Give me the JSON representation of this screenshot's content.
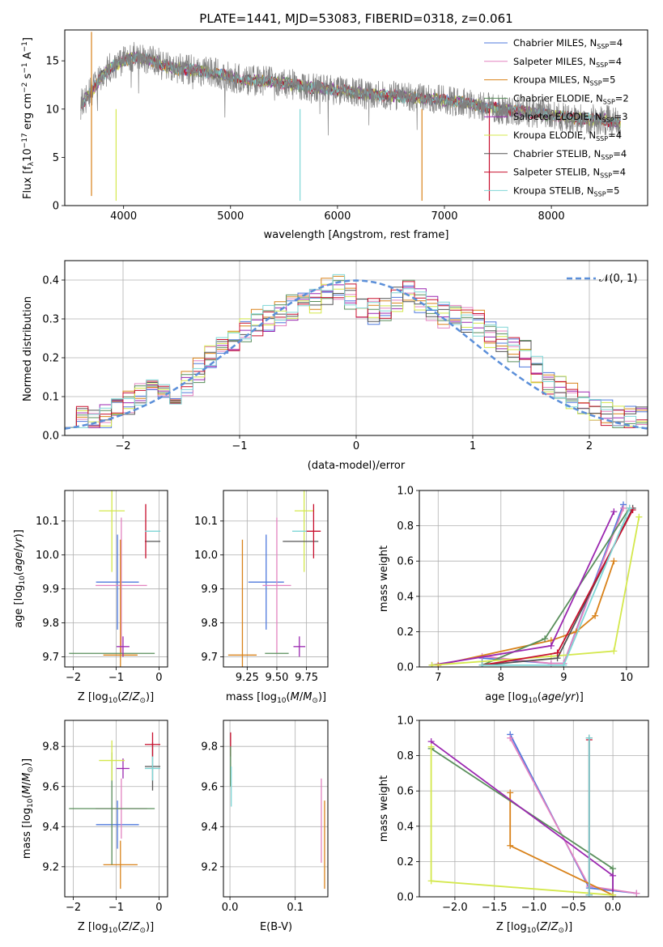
{
  "chart_data": [
    {
      "type": "line",
      "title": "PLATE=1441, MJD=53083, FIBERID=0318, z=0.061",
      "xlabel": "wavelength [Angstrom, rest frame]",
      "ylabel": "Flux [f$_{\\lambda}$10$^{-17}$ erg cm$^{-2}$ s$^{-1}$ A$^{-1}$]",
      "ylabel_parts": [
        "Flux [f",
        "λ",
        "10",
        "−17",
        " erg cm",
        "−2",
        " s",
        "−1",
        " A",
        "−1",
        "]"
      ],
      "xlim": [
        3450,
        8900
      ],
      "ylim": [
        0,
        18.2
      ],
      "xticks": [
        4000,
        5000,
        6000,
        7000,
        8000
      ],
      "yticks": [
        0,
        5,
        10,
        15
      ],
      "legend_position": "top-right",
      "observed_spectrum": {
        "color": "#808080",
        "x": [
          3600,
          3700,
          3800,
          3900,
          4000,
          4100,
          4200,
          4300,
          4400,
          4500,
          4700,
          4900,
          5100,
          5300,
          5500,
          5700,
          5900,
          6100,
          6300,
          6500,
          6700,
          6900,
          7100,
          7300,
          7500,
          7700,
          7900,
          8100,
          8300,
          8500,
          8650
        ],
        "y": [
          10.5,
          11.8,
          13.5,
          14.5,
          15.0,
          15.4,
          15.2,
          14.9,
          14.4,
          14.2,
          14.0,
          13.6,
          13.1,
          12.9,
          12.7,
          12.3,
          12.1,
          11.8,
          11.5,
          11.4,
          11.2,
          11.0,
          10.8,
          10.4,
          10.0,
          9.8,
          9.5,
          9.2,
          9.0,
          8.9,
          8.5
        ]
      },
      "series": [
        {
          "name": "Chabrier MILES, N$_{SSP}$=4",
          "label_main": "Chabrier MILES, N",
          "label_sub": "SSP",
          "label_tail": "=4",
          "color": "#4f79dd"
        },
        {
          "name": "Salpeter MILES, N$_{SSP}$=4",
          "label_main": "Salpeter MILES, N",
          "label_sub": "SSP",
          "label_tail": "=4",
          "color": "#e383c0"
        },
        {
          "name": "Kroupa MILES, N$_{SSP}$=5",
          "label_main": "Kroupa MILES, N",
          "label_sub": "SSP",
          "label_tail": "=5",
          "color": "#d9821a"
        },
        {
          "name": "Chabrier ELODIE, N$_{SSP}$=2",
          "label_main": "Chabrier ELODIE, N",
          "label_sub": "SSP",
          "label_tail": "=2",
          "color": "#5a8f5c"
        },
        {
          "name": "Salpeter ELODIE, N$_{SSP}$=3",
          "label_main": "Salpeter ELODIE, N",
          "label_sub": "SSP",
          "label_tail": "=3",
          "color": "#9b27b0"
        },
        {
          "name": "Kroupa ELODIE, N$_{SSP}$=4",
          "label_main": "Kroupa ELODIE, N",
          "label_sub": "SSP",
          "label_tail": "=4",
          "color": "#d4e84c"
        },
        {
          "name": "Chabrier STELIB, N$_{SSP}$=4",
          "label_main": "Chabrier STELIB, N",
          "label_sub": "SSP",
          "label_tail": "=4",
          "color": "#555555"
        },
        {
          "name": "Salpeter STELIB, N$_{SSP}$=4",
          "label_main": "Salpeter STELIB, N",
          "label_sub": "SSP",
          "label_tail": "=4",
          "color": "#c8102e"
        },
        {
          "name": "Kroupa STELIB, N$_{SSP}$=5",
          "label_main": "Kroupa STELIB, N",
          "label_sub": "SSP",
          "label_tail": "=5",
          "color": "#7fd6d6"
        }
      ]
    },
    {
      "type": "line",
      "xlabel": "(data-model)/error",
      "ylabel": "Normed distribution",
      "xlim": [
        -2.5,
        2.5
      ],
      "ylim": [
        0,
        0.45
      ],
      "xticks": [
        -2,
        -1,
        0,
        1,
        2
      ],
      "yticks": [
        0.0,
        0.1,
        0.2,
        0.3,
        0.4
      ],
      "grid": true,
      "legend_position": "top-right",
      "legend": "$\\mathcal{N}(0,1)$",
      "legend_text": "𝒩(0, 1)",
      "bin_width": 0.1,
      "histogram_profile": [
        0.04,
        0.04,
        0.04,
        0.05,
        0.06,
        0.08,
        0.1,
        0.12,
        0.1,
        0.11,
        0.13,
        0.17,
        0.2,
        0.22,
        0.24,
        0.27,
        0.29,
        0.3,
        0.31,
        0.33,
        0.36,
        0.35,
        0.37,
        0.38,
        0.36,
        0.33,
        0.32,
        0.33,
        0.35,
        0.37,
        0.35,
        0.33,
        0.31,
        0.3,
        0.3,
        0.29,
        0.26,
        0.25,
        0.22,
        0.21,
        0.17,
        0.14,
        0.12,
        0.1,
        0.08,
        0.07,
        0.06,
        0.05,
        0.04,
        0.04
      ],
      "normal_curve_color": "#5b8fd9"
    },
    {
      "type": "scatter",
      "xlabel": "Z [log$_{10}$(Z/Z$_\\odot$)]",
      "ylabel": "age  [log$_{10}$(age/yr)]",
      "xlim": [
        -2.2,
        0.2
      ],
      "ylim": [
        9.67,
        10.19
      ],
      "xticks": [
        -2,
        -1,
        0
      ],
      "yticks": [
        9.7,
        9.8,
        9.9,
        10.0,
        10.1
      ],
      "ytick_labels": [
        "9.7",
        "9.8",
        "9.9",
        "10.0",
        "10.1"
      ],
      "grid": true,
      "points": [
        {
          "series": "Chabrier MILES",
          "x": -0.97,
          "y": 9.92,
          "xerr": 0.5,
          "yerr": 0.14
        },
        {
          "series": "Salpeter MILES",
          "x": -0.88,
          "y": 9.91,
          "xerr": 0.6,
          "yerr": 0.2
        },
        {
          "series": "Kroupa MILES",
          "x": -0.9,
          "y": 9.705,
          "xerr": 0.4,
          "yerr": 0.34
        },
        {
          "series": "Chabrier ELODIE",
          "x": -1.1,
          "y": 9.71,
          "xerr": 1.0,
          "yerr": 0.0
        },
        {
          "series": "Salpeter ELODIE",
          "x": -0.84,
          "y": 9.73,
          "xerr": 0.15,
          "yerr": 0.03
        },
        {
          "series": "Kroupa ELODIE",
          "x": -1.1,
          "y": 10.13,
          "xerr": 0.3,
          "yerr": 0.18
        },
        {
          "series": "Chabrier STELIB",
          "x": -0.15,
          "y": 10.04,
          "xerr": 0.18,
          "yerr": 0.0
        },
        {
          "series": "Salpeter STELIB",
          "x": -0.31,
          "y": 10.07,
          "xerr": 0.0,
          "yerr": 0.08
        },
        {
          "series": "Kroupa STELIB",
          "x": -0.15,
          "y": 10.07,
          "xerr": 0.18,
          "yerr": 0.0
        }
      ]
    },
    {
      "type": "scatter",
      "xlabel": "mass [log$_{10}$(M/M$_\\odot$)]",
      "ylabel": "",
      "xlim": [
        9.05,
        9.93
      ],
      "ylim": [
        9.67,
        10.19
      ],
      "xticks": [
        9.25,
        9.5,
        9.75
      ],
      "xtick_labels": [
        "9.25",
        "9.50",
        "9.75"
      ],
      "yticks": [
        9.7,
        9.8,
        9.9,
        10.0,
        10.1
      ],
      "ytick_labels": [
        "9.7",
        "9.8",
        "9.9",
        "10.0",
        "10.1"
      ],
      "grid": true,
      "points": [
        {
          "series": "Chabrier MILES",
          "x": 9.41,
          "y": 9.92,
          "xerr": 0.15,
          "yerr": 0.14
        },
        {
          "series": "Salpeter MILES",
          "x": 9.5,
          "y": 9.91,
          "xerr": 0.12,
          "yerr": 0.2
        },
        {
          "series": "Kroupa MILES",
          "x": 9.21,
          "y": 9.705,
          "xerr": 0.12,
          "yerr": 0.34
        },
        {
          "series": "Chabrier ELODIE",
          "x": 9.5,
          "y": 9.71,
          "xerr": 0.1,
          "yerr": 0.0
        },
        {
          "series": "Salpeter ELODIE",
          "x": 9.69,
          "y": 9.73,
          "xerr": 0.05,
          "yerr": 0.03
        },
        {
          "series": "Kroupa ELODIE",
          "x": 9.73,
          "y": 10.13,
          "xerr": 0.08,
          "yerr": 0.18
        },
        {
          "series": "Chabrier STELIB",
          "x": 9.7,
          "y": 10.04,
          "xerr": 0.15,
          "yerr": 0.0
        },
        {
          "series": "Salpeter STELIB",
          "x": 9.81,
          "y": 10.07,
          "xerr": 0.06,
          "yerr": 0.08
        },
        {
          "series": "Kroupa STELIB",
          "x": 9.69,
          "y": 10.07,
          "xerr": 0.06,
          "yerr": 0.0
        }
      ]
    },
    {
      "type": "line",
      "xlabel": "age  [log$_{10}$(age/yr)]",
      "ylabel": "mass weight",
      "xlim": [
        6.7,
        10.35
      ],
      "ylim": [
        0,
        1.0
      ],
      "xticks": [
        7,
        8,
        9,
        10
      ],
      "yticks": [
        0.0,
        0.2,
        0.4,
        0.6,
        0.8,
        1.0
      ],
      "grid": true,
      "series": [
        {
          "name": "Chabrier MILES",
          "x": [
            7.7,
            8.8,
            9.0,
            9.95
          ],
          "y": [
            0.05,
            0.02,
            0.02,
            0.92
          ]
        },
        {
          "name": "Salpeter MILES",
          "x": [
            7.7,
            8.8,
            9.0,
            9.95
          ],
          "y": [
            0.06,
            0.02,
            0.02,
            0.9
          ]
        },
        {
          "name": "Kroupa MILES",
          "x": [
            7.0,
            8.8,
            9.2,
            9.5,
            9.8
          ],
          "y": [
            0.01,
            0.15,
            0.2,
            0.29,
            0.6
          ]
        },
        {
          "name": "Chabrier ELODIE",
          "x": [
            7.7,
            8.7,
            10.05
          ],
          "y": [
            0.01,
            0.16,
            0.9
          ]
        },
        {
          "name": "Salpeter ELODIE",
          "x": [
            6.9,
            8.8,
            9.8
          ],
          "y": [
            0.01,
            0.12,
            0.88
          ]
        },
        {
          "name": "Kroupa ELODIE",
          "x": [
            6.9,
            8.8,
            9.8,
            10.2
          ],
          "y": [
            0.01,
            0.06,
            0.09,
            0.85
          ]
        },
        {
          "name": "Chabrier STELIB",
          "x": [
            7.7,
            8.9,
            10.1
          ],
          "y": [
            0.01,
            0.05,
            0.9
          ]
        },
        {
          "name": "Salpeter STELIB",
          "x": [
            7.7,
            8.9,
            10.1
          ],
          "y": [
            0.01,
            0.08,
            0.89
          ]
        },
        {
          "name": "Kroupa STELIB",
          "x": [
            7.7,
            9.0,
            10.05
          ],
          "y": [
            0.01,
            0.01,
            0.9
          ]
        }
      ]
    },
    {
      "type": "scatter",
      "xlabel": "Z [log$_{10}$(Z/Z$_\\odot$)]",
      "ylabel": "mass [log$_{10}$(M/M$_\\odot$)]",
      "xlim": [
        -2.2,
        0.2
      ],
      "ylim": [
        9.05,
        9.93
      ],
      "xticks": [
        -2,
        -1,
        0
      ],
      "yticks": [
        9.2,
        9.4,
        9.6,
        9.8
      ],
      "ytick_labels": [
        "9.2",
        "9.4",
        "9.6",
        "9.8"
      ],
      "grid": true,
      "points": [
        {
          "series": "Chabrier MILES",
          "x": -0.97,
          "y": 9.41,
          "xerr": 0.5,
          "yerr": 0.12
        },
        {
          "series": "Salpeter MILES",
          "x": -0.88,
          "y": 9.49,
          "xerr": 0.6,
          "yerr": 0.15
        },
        {
          "series": "Kroupa MILES",
          "x": -0.9,
          "y": 9.21,
          "xerr": 0.4,
          "yerr": 0.12
        },
        {
          "series": "Chabrier ELODIE",
          "x": -1.1,
          "y": 9.49,
          "xerr": 1.0,
          "yerr": 0.28
        },
        {
          "series": "Salpeter ELODIE",
          "x": -0.84,
          "y": 9.69,
          "xerr": 0.15,
          "yerr": 0.05
        },
        {
          "series": "Kroupa ELODIE",
          "x": -1.1,
          "y": 9.73,
          "xerr": 0.3,
          "yerr": 0.1
        },
        {
          "series": "Chabrier STELIB",
          "x": -0.15,
          "y": 9.7,
          "xerr": 0.18,
          "yerr": 0.12
        },
        {
          "series": "Salpeter STELIB",
          "x": -0.15,
          "y": 9.81,
          "xerr": 0.18,
          "yerr": 0.06
        },
        {
          "series": "Kroupa STELIB",
          "x": -0.15,
          "y": 9.69,
          "xerr": 0.18,
          "yerr": 0.06
        }
      ]
    },
    {
      "type": "scatter",
      "xlabel": "E(B-V)",
      "ylabel": "",
      "xlim": [
        -0.01,
        0.15
      ],
      "ylim": [
        9.05,
        9.93
      ],
      "xticks": [
        0.0,
        0.1
      ],
      "xtick_labels": [
        "0.0",
        "0.1"
      ],
      "yticks": [
        9.2,
        9.4,
        9.6,
        9.8
      ],
      "ytick_labels": [
        "9.2",
        "9.4",
        "9.6",
        "9.8"
      ],
      "grid": true,
      "points": [
        {
          "series": "Salpeter STELIB",
          "x": 0.001,
          "y": 9.81,
          "yerr": 0.06
        },
        {
          "series": "Chabrier ELODIE",
          "x": 0.001,
          "y": 9.7,
          "yerr": 0.1
        },
        {
          "series": "Kroupa STELIB",
          "x": 0.002,
          "y": 9.6,
          "yerr": 0.1
        },
        {
          "series": "Salpeter MILES",
          "x": 0.14,
          "y": 9.43,
          "yerr": 0.21
        },
        {
          "series": "Kroupa MILES",
          "x": 0.145,
          "y": 9.31,
          "yerr": 0.22
        }
      ]
    },
    {
      "type": "line",
      "xlabel": "Z [log$_{10}$(Z/Z$_\\odot$)]",
      "ylabel": "mass weight",
      "xlim": [
        -2.45,
        0.45
      ],
      "ylim": [
        0,
        1.0
      ],
      "xticks": [
        -2.0,
        -1.5,
        -1.0,
        -0.5,
        0.0
      ],
      "xtick_labels": [
        "−2.0",
        "−1.5",
        "−1.0",
        "−0.5",
        "0.0"
      ],
      "yticks": [
        0.0,
        0.2,
        0.4,
        0.6,
        0.8,
        1.0
      ],
      "grid": true,
      "series": [
        {
          "name": "Chabrier MILES",
          "x": [
            -1.3,
            -0.3,
            0.3
          ],
          "y": [
            0.92,
            0.05,
            0.02
          ]
        },
        {
          "name": "Salpeter MILES",
          "x": [
            -1.3,
            -0.3,
            0.3
          ],
          "y": [
            0.9,
            0.06,
            0.02
          ]
        },
        {
          "name": "Kroupa MILES",
          "x": [
            -1.3,
            -1.3,
            0.0
          ],
          "y": [
            0.59,
            0.29,
            0.01
          ]
        },
        {
          "name": "Chabrier ELODIE",
          "x": [
            -2.3,
            0.0,
            0.0
          ],
          "y": [
            0.84,
            0.16,
            0.0
          ]
        },
        {
          "name": "Salpeter ELODIE",
          "x": [
            -2.3,
            0.0,
            0.0
          ],
          "y": [
            0.88,
            0.12,
            0.0
          ]
        },
        {
          "name": "Kroupa ELODIE",
          "x": [
            -2.3,
            -2.3,
            0.0
          ],
          "y": [
            0.85,
            0.09,
            0.01
          ]
        },
        {
          "name": "Chabrier STELIB",
          "x": [
            -0.3,
            -0.3
          ],
          "y": [
            0.9,
            0.01
          ]
        },
        {
          "name": "Salpeter STELIB",
          "x": [
            -0.3,
            -0.3
          ],
          "y": [
            0.89,
            0.01
          ]
        },
        {
          "name": "Kroupa STELIB",
          "x": [
            -0.3,
            -0.3
          ],
          "y": [
            0.9,
            0.01
          ]
        }
      ]
    }
  ]
}
